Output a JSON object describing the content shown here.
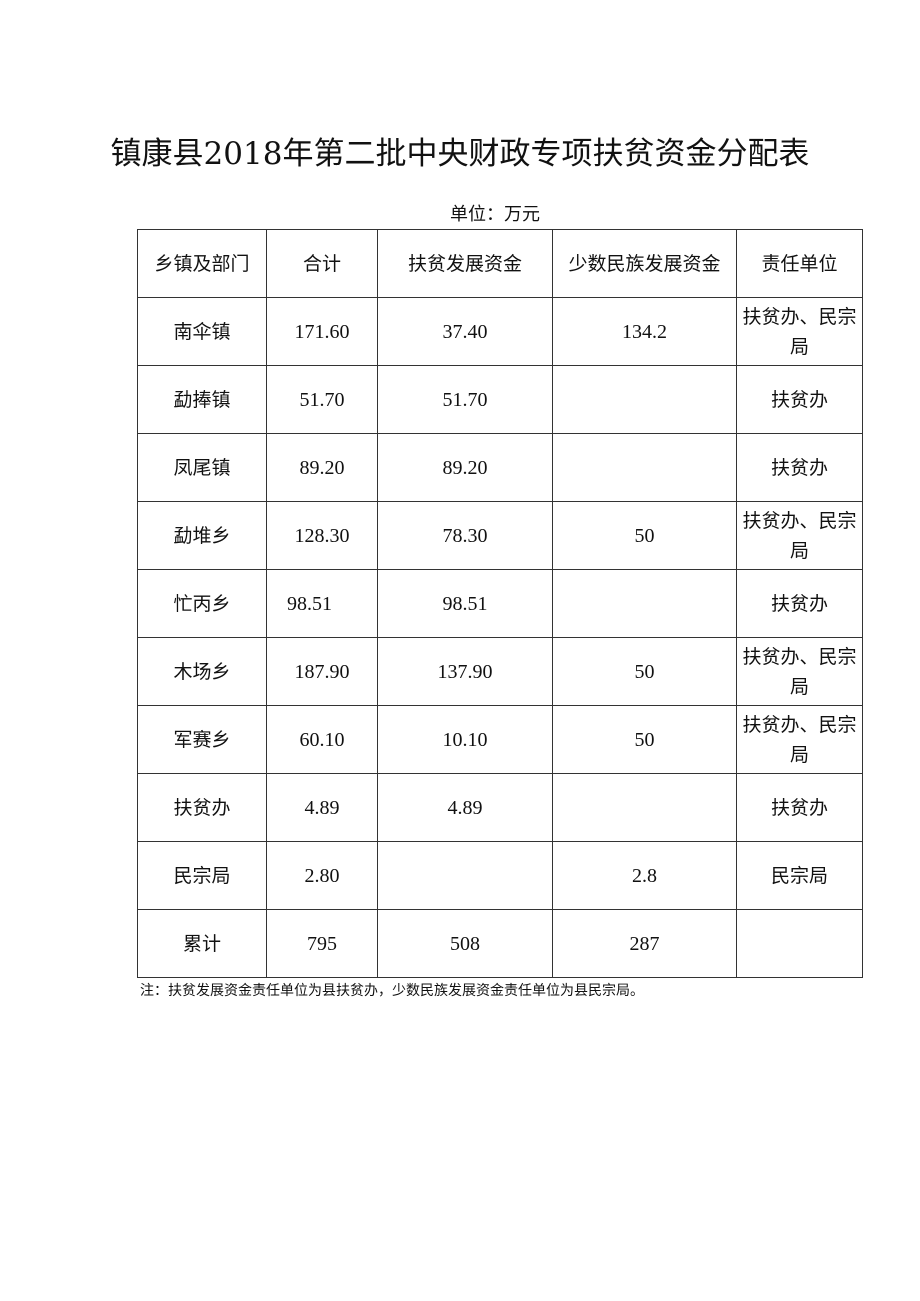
{
  "title": "镇康县2018年第二批中央财政专项扶贫资金分配表",
  "unit": "单位：万元",
  "table": {
    "headers": [
      "乡镇及部门",
      "合计",
      "扶贫发展资金",
      "少数民族发展资金",
      "责任单位"
    ],
    "rows": [
      [
        "南伞镇",
        "171.60",
        "37.40",
        "134.2",
        "扶贫办、民宗局"
      ],
      [
        "勐捧镇",
        "51.70",
        "51.70",
        "",
        "扶贫办"
      ],
      [
        "凤尾镇",
        "89.20",
        "89.20",
        "",
        "扶贫办"
      ],
      [
        "勐堆乡",
        "128.30",
        "78.30",
        "50",
        "扶贫办、民宗局"
      ],
      [
        "忙丙乡",
        "98.51",
        "98.51",
        "",
        "扶贫办"
      ],
      [
        "木场乡",
        "187.90",
        "137.90",
        "50",
        "扶贫办、民宗局"
      ],
      [
        "军赛乡",
        "60.10",
        "10.10",
        "50",
        "扶贫办、民宗局"
      ],
      [
        "扶贫办",
        "4.89",
        "4.89",
        "",
        "扶贫办"
      ],
      [
        "民宗局",
        "2.80",
        "",
        "2.8",
        "民宗局"
      ],
      [
        "累计",
        "795",
        "508",
        "287",
        ""
      ]
    ]
  },
  "note": "注：扶贫发展资金责任单位为县扶贫办，少数民族发展资金责任单位为县民宗局。"
}
